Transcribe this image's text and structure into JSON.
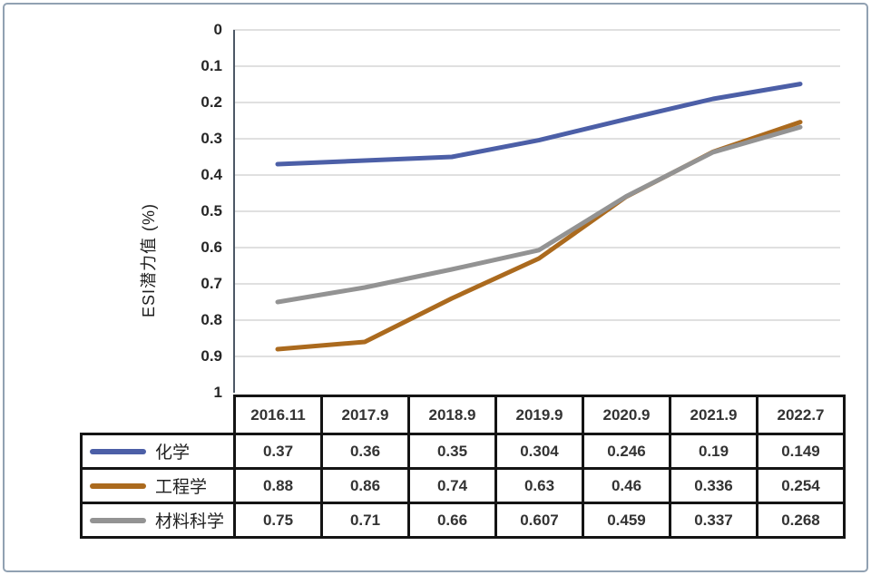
{
  "chart_data": {
    "type": "line",
    "categories": [
      "2016.11",
      "2017.9",
      "2018.9",
      "2019.9",
      "2020.9",
      "2021.9",
      "2022.7"
    ],
    "series": [
      {
        "name": "化学",
        "color": "#4c5fa7",
        "values": [
          0.37,
          0.36,
          0.35,
          0.304,
          0.246,
          0.19,
          0.149
        ]
      },
      {
        "name": "工程学",
        "color": "#ab6a1e",
        "values": [
          0.88,
          0.86,
          0.74,
          0.63,
          0.46,
          0.336,
          0.254
        ]
      },
      {
        "name": "材料科学",
        "color": "#939393",
        "values": [
          0.75,
          0.71,
          0.66,
          0.607,
          0.459,
          0.337,
          0.268
        ]
      }
    ],
    "title": "",
    "xlabel": "",
    "ylabel": "ESI潜力值 (%)",
    "yticks": [
      "0",
      "0.1",
      "0.2",
      "0.3",
      "0.4",
      "0.5",
      "0.6",
      "0.7",
      "0.8",
      "0.9",
      "1"
    ],
    "ylim": [
      0,
      1
    ],
    "y_axis_inverted": true,
    "grid": true,
    "legend_position": "table-left-column",
    "colors": {
      "gridline": "#d6d6d6",
      "axis_line": "#4d5866",
      "table_border": "#141414",
      "frame_border": "#91a1b2",
      "tick_text": "#262626"
    }
  }
}
